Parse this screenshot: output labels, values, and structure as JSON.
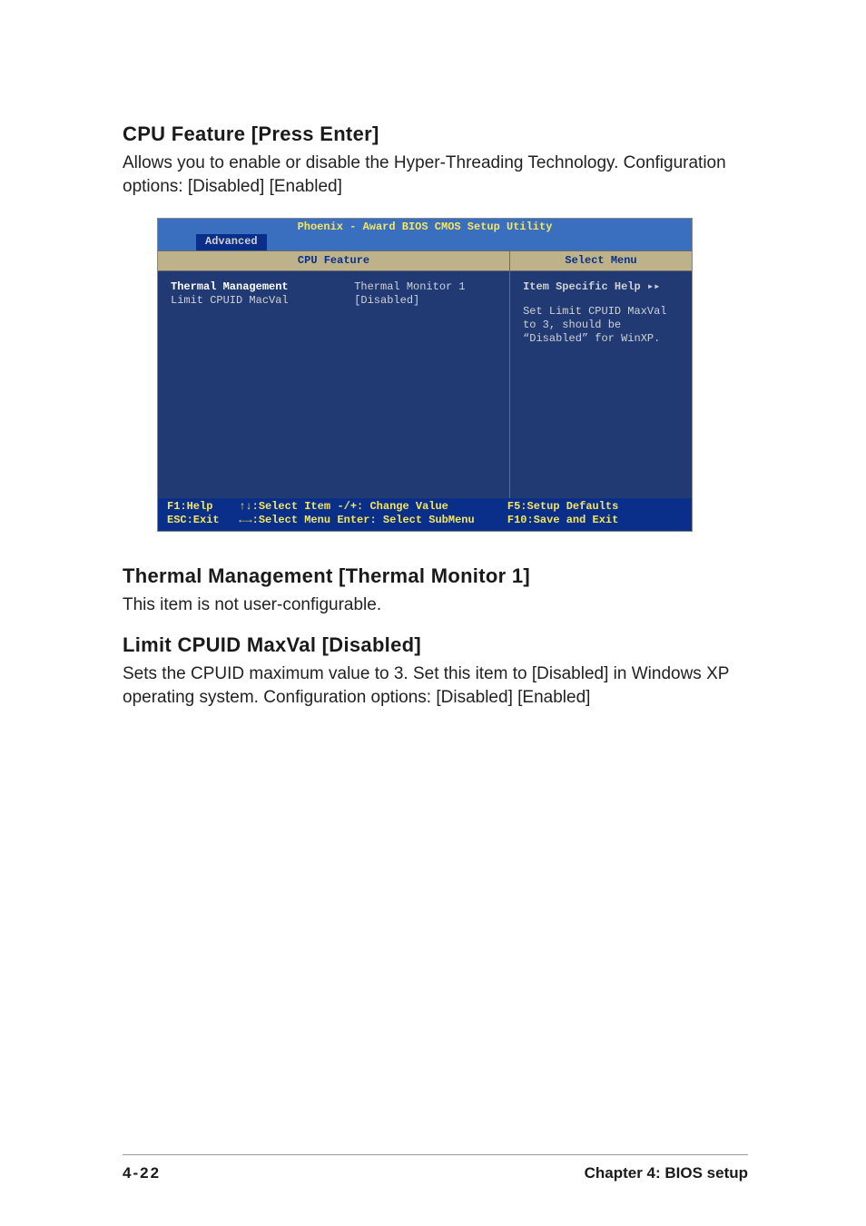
{
  "section1": {
    "heading": "CPU Feature [Press Enter]",
    "body": "Allows you to enable or disable the Hyper-Threading Technology. Configuration options: [Disabled] [Enabled]"
  },
  "bios": {
    "title": "Phoenix - Award BIOS CMOS Setup Utility",
    "tab": "Advanced",
    "left_header": "CPU Feature",
    "right_header": "Select Menu",
    "settings": [
      {
        "label": "Thermal Management",
        "value": "Thermal Monitor 1",
        "highlight": true
      },
      {
        "label": "Limit CPUID MacVal",
        "value": "[Disabled]",
        "highlight": false
      }
    ],
    "help_title": "Item Specific Help ▸▸",
    "help_body": "Set Limit CPUID MaxVal to 3, should be “Disabled” for WinXP.",
    "footer": {
      "c1": "F1:Help    ↑↓:Select Item\nESC:Exit   ←→:Select Menu",
      "c2": "-/+: Change Value\nEnter: Select SubMenu",
      "c3": "F5:Setup Defaults\nF10:Save and Exit"
    },
    "colors": {
      "header_bg": "#3a6fc0",
      "title_color": "#f5e65e",
      "tab_bg": "#0a2f8a",
      "colhdr_bg": "#bdb28a",
      "colhdr_color": "#0a2f8a",
      "body_bg": "#223a73",
      "body_color": "#cfd2d6",
      "footer_bg": "#0a2f8a",
      "footer_color": "#f5e65e"
    }
  },
  "section2": {
    "heading": "Thermal Management [Thermal Monitor 1]",
    "body": "This item is not user-configurable."
  },
  "section3": {
    "heading": "Limit CPUID MaxVal [Disabled]",
    "body": "Sets the CPUID maximum value to 3. Set this item to [Disabled] in Windows XP operating system. Configuration options: [Disabled] [Enabled]"
  },
  "page_footer": {
    "pageno": "4-22",
    "chapter": "Chapter 4: BIOS setup"
  }
}
